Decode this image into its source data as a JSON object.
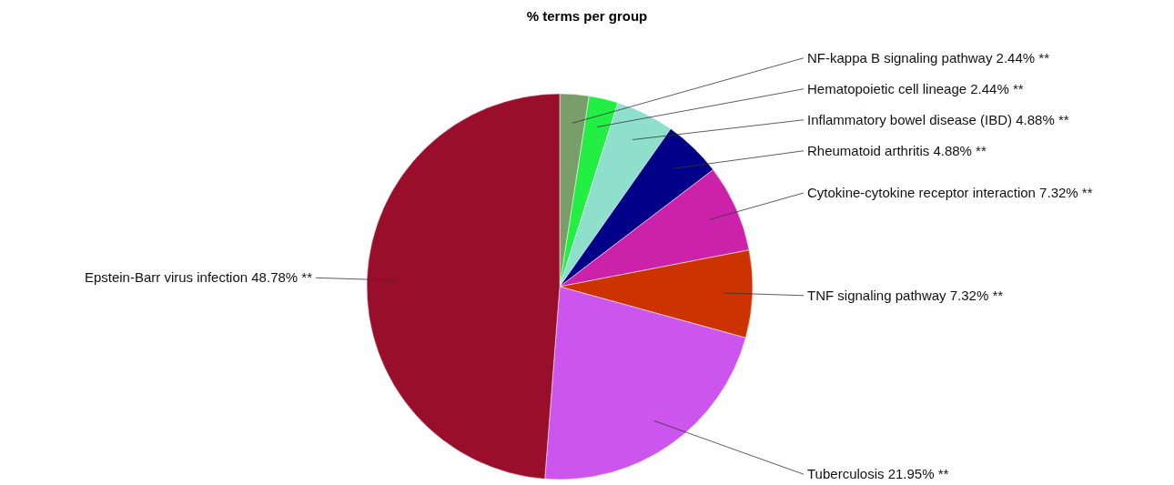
{
  "chart_data": {
    "type": "pie",
    "title": "% terms per group",
    "categories": [
      "NF-kappa B signaling pathway",
      "Hematopoietic cell lineage",
      "Inflammatory bowel disease (IBD)",
      "Rheumatoid arthritis",
      "Cytokine-cytokine receptor interaction",
      "TNF signaling pathway",
      "Tuberculosis",
      "Epstein-Barr virus infection"
    ],
    "values": [
      2.44,
      2.44,
      4.88,
      4.88,
      7.32,
      7.32,
      21.95,
      48.78
    ],
    "value_labels": [
      "2.44% **",
      "2.44% **",
      "4.88% **",
      "4.88% **",
      "7.32% **",
      "7.32% **",
      "21.95% **",
      "48.78% **"
    ],
    "colors": [
      "#7a9e6a",
      "#22ee44",
      "#8ee0cc",
      "#000088",
      "#cc22aa",
      "#cc3300",
      "#cc55ee",
      "#990f2b"
    ]
  }
}
